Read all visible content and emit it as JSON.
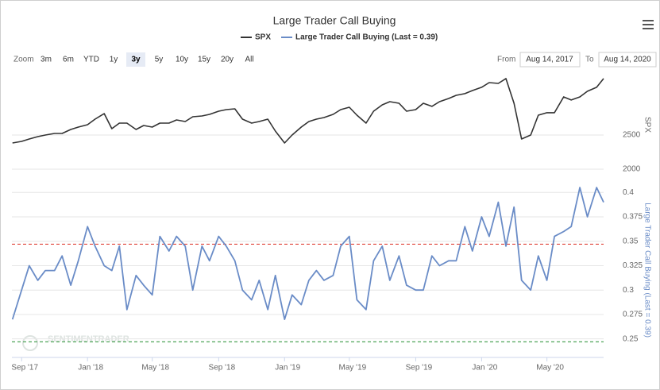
{
  "chart_data": {
    "type": "line",
    "title": "Large Trader Call Buying",
    "controls": {
      "zoom_label": "Zoom",
      "buttons": [
        "3m",
        "6m",
        "YTD",
        "1y",
        "3y",
        "5y",
        "10y",
        "15y",
        "20y",
        "All"
      ],
      "selected": 4,
      "from_label": "From",
      "from": "Aug 14, 2017",
      "to_label": "To",
      "to": "Aug 14, 2020"
    },
    "watermark": "SENTIMENTRADER",
    "y_label": "SPX",
    "y2_label": "Large Trader Call Buying (Last = 0.39)",
    "x": [
      "2017-08-15",
      "2017-09-01",
      "2017-09-15",
      "2017-10-01",
      "2017-10-15",
      "2017-11-01",
      "2017-11-15",
      "2017-12-01",
      "2017-12-15",
      "2018-01-01",
      "2018-01-15",
      "2018-02-01",
      "2018-02-15",
      "2018-03-01",
      "2018-03-15",
      "2018-04-01",
      "2018-04-15",
      "2018-05-01",
      "2018-05-15",
      "2018-06-01",
      "2018-06-15",
      "2018-07-01",
      "2018-07-15",
      "2018-08-01",
      "2018-08-15",
      "2018-09-01",
      "2018-09-15",
      "2018-10-01",
      "2018-10-15",
      "2018-11-01",
      "2018-11-15",
      "2018-12-01",
      "2018-12-15",
      "2019-01-01",
      "2019-01-15",
      "2019-02-01",
      "2019-02-15",
      "2019-03-01",
      "2019-03-15",
      "2019-04-01",
      "2019-04-15",
      "2019-05-01",
      "2019-05-15",
      "2019-06-01",
      "2019-06-15",
      "2019-07-01",
      "2019-07-15",
      "2019-08-01",
      "2019-08-15",
      "2019-09-01",
      "2019-09-15",
      "2019-10-01",
      "2019-10-15",
      "2019-11-01",
      "2019-11-15",
      "2019-12-01",
      "2019-12-15",
      "2020-01-01",
      "2020-01-15",
      "2020-02-01",
      "2020-02-15",
      "2020-03-01",
      "2020-03-15",
      "2020-04-01",
      "2020-04-15",
      "2020-05-01",
      "2020-05-15",
      "2020-06-01",
      "2020-06-15",
      "2020-07-01",
      "2020-07-15",
      "2020-08-01",
      "2020-08-14"
    ],
    "series": [
      {
        "name": "SPX",
        "color": "#333333",
        "values": [
          2384,
          2407,
          2442,
          2477,
          2500,
          2523,
          2523,
          2581,
          2616,
          2651,
          2733,
          2814,
          2593,
          2674,
          2674,
          2581,
          2640,
          2616,
          2674,
          2674,
          2721,
          2698,
          2767,
          2779,
          2802,
          2849,
          2872,
          2884,
          2733,
          2674,
          2698,
          2733,
          2558,
          2384,
          2500,
          2616,
          2698,
          2733,
          2756,
          2802,
          2872,
          2907,
          2791,
          2674,
          2849,
          2942,
          2988,
          2965,
          2849,
          2872,
          2965,
          2919,
          2988,
          3035,
          3081,
          3105,
          3151,
          3198,
          3267,
          3256,
          3326,
          2965,
          2442,
          2500,
          2791,
          2826,
          2826,
          3058,
          3012,
          3058,
          3140,
          3198,
          3326
        ]
      },
      {
        "name": "Large Trader Call Buying (Last = 0.39)",
        "color": "#6a8cc7",
        "axis": "y2",
        "values": [
          0.27,
          0.3,
          0.325,
          0.31,
          0.32,
          0.32,
          0.335,
          0.305,
          0.33,
          0.365,
          0.345,
          0.325,
          0.32,
          0.345,
          0.28,
          0.315,
          0.305,
          0.295,
          0.355,
          0.34,
          0.355,
          0.345,
          0.3,
          0.345,
          0.33,
          0.355,
          0.345,
          0.33,
          0.3,
          0.29,
          0.31,
          0.28,
          0.315,
          0.27,
          0.295,
          0.285,
          0.31,
          0.32,
          0.31,
          0.315,
          0.345,
          0.355,
          0.29,
          0.28,
          0.33,
          0.345,
          0.31,
          0.335,
          0.305,
          0.3,
          0.3,
          0.335,
          0.325,
          0.33,
          0.33,
          0.365,
          0.34,
          0.375,
          0.355,
          0.39,
          0.345,
          0.385,
          0.31,
          0.3,
          0.335,
          0.31,
          0.355,
          0.36,
          0.365,
          0.405,
          0.375,
          0.405,
          0.39
        ]
      }
    ],
    "xlim": [
      "2017-08-14",
      "2020-08-14"
    ],
    "xticks": [
      {
        "value": "2017-09-01",
        "label": "Sep '17"
      },
      {
        "value": "2018-01-01",
        "label": "Jan '18"
      },
      {
        "value": "2018-05-01",
        "label": "May '18"
      },
      {
        "value": "2018-09-01",
        "label": "Sep '18"
      },
      {
        "value": "2019-01-01",
        "label": "Jan '19"
      },
      {
        "value": "2019-05-01",
        "label": "May '19"
      },
      {
        "value": "2019-09-01",
        "label": "Sep '19"
      },
      {
        "value": "2020-01-01",
        "label": "Jan '20"
      },
      {
        "value": "2020-05-01",
        "label": "May '20"
      }
    ],
    "ylim": [
      1977,
      3453
    ],
    "yticks": [
      2000,
      2500
    ],
    "y2lim": [
      0.231,
      0.41
    ],
    "y2ticks": [
      0.25,
      0.275,
      0.3,
      0.325,
      0.35,
      0.375,
      0.4
    ],
    "reference_lines": [
      {
        "value": 0.347,
        "color": "#e0453a",
        "axis": "y2"
      },
      {
        "value": 0.247,
        "color": "#3a9a44",
        "axis": "y2"
      }
    ],
    "grid": true
  }
}
